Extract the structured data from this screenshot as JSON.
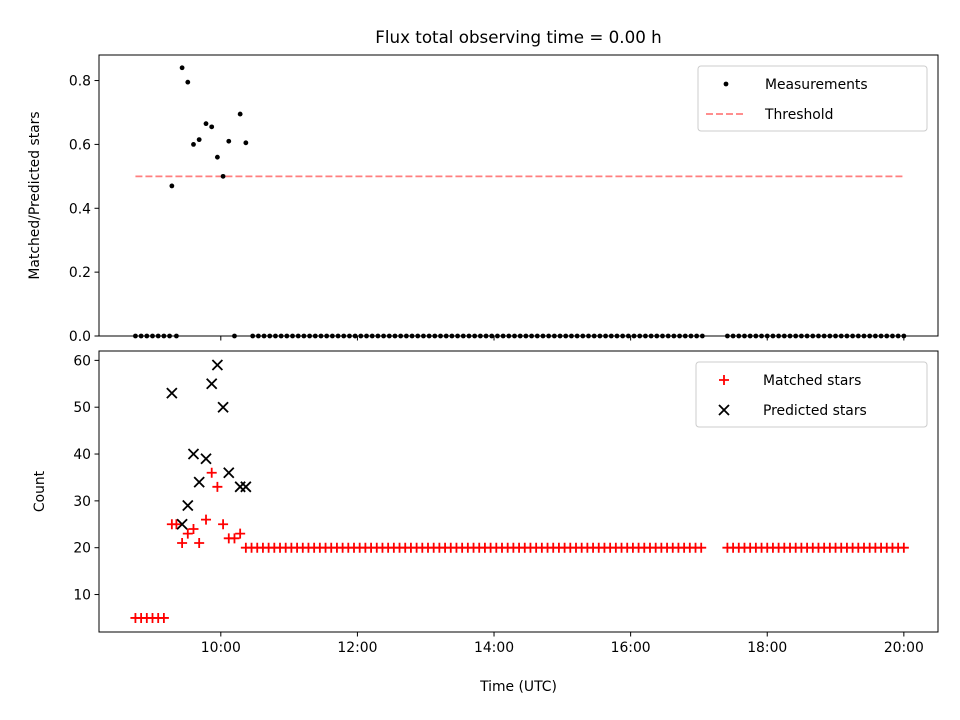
{
  "figure": {
    "title": "Flux total observing time = 0.00 h"
  },
  "colors": {
    "measurement": "#000000",
    "threshold": "#ff7f7f",
    "matched": "#ff0000",
    "predicted": "#000000",
    "axes": "#000000"
  },
  "chart_data": [
    {
      "type": "scatter",
      "panel": "top",
      "ylabel": "Matched/Predicted stars",
      "xlabel": "",
      "x_unit": "time (UTC, HH:MM)",
      "xlim": [
        "08:13",
        "20:30"
      ],
      "ylim": [
        0,
        0.88
      ],
      "yticks": [
        0.0,
        0.2,
        0.4,
        0.6,
        0.8
      ],
      "ytick_labels": [
        "0.0",
        "0.2",
        "0.4",
        "0.6",
        "0.8"
      ],
      "xticks": [
        "10:00",
        "12:00",
        "14:00",
        "16:00",
        "18:00",
        "20:00"
      ],
      "xtick_labels_shown": false,
      "legend": {
        "placement": "top-right",
        "entries": [
          "Measurements",
          "Threshold"
        ]
      },
      "series": [
        {
          "name": "Measurements",
          "kind": "points",
          "points": [
            [
              "09:17",
              0.47
            ],
            [
              "09:26",
              0.84
            ],
            [
              "09:31",
              0.795
            ],
            [
              "09:36",
              0.6
            ],
            [
              "09:41",
              0.615
            ],
            [
              "09:47",
              0.665
            ],
            [
              "09:52",
              0.655
            ],
            [
              "09:57",
              0.56
            ],
            [
              "10:02",
              0.5
            ],
            [
              "10:07",
              0.61
            ],
            [
              "10:17",
              0.695
            ],
            [
              "10:22",
              0.605
            ]
          ],
          "zero_runs": [
            {
              "from": "08:45",
              "to": "09:15",
              "every_min": 5
            },
            {
              "from": "09:21",
              "to": "09:21",
              "every_min": 5
            },
            {
              "from": "10:12",
              "to": "10:12",
              "every_min": 5
            },
            {
              "from": "10:28",
              "to": "17:05",
              "every_min": 5
            },
            {
              "from": "17:25",
              "to": "20:00",
              "every_min": 5
            }
          ]
        },
        {
          "name": "Threshold",
          "kind": "dashed-line",
          "y": 0.5,
          "x_from": "08:45",
          "x_to": "20:00"
        }
      ]
    },
    {
      "type": "scatter",
      "panel": "bottom",
      "ylabel": "Count",
      "xlabel": "Time (UTC)",
      "xlim": [
        "08:13",
        "20:30"
      ],
      "ylim": [
        2,
        62
      ],
      "yticks": [
        10,
        20,
        30,
        40,
        50,
        60
      ],
      "ytick_labels": [
        "10",
        "20",
        "30",
        "40",
        "50",
        "60"
      ],
      "xticks": [
        "10:00",
        "12:00",
        "14:00",
        "16:00",
        "18:00",
        "20:00"
      ],
      "xtick_labels": [
        "10:00",
        "12:00",
        "14:00",
        "16:00",
        "18:00",
        "20:00"
      ],
      "legend": {
        "placement": "top-right",
        "entries": [
          "Matched stars",
          "Predicted stars"
        ]
      },
      "series": [
        {
          "name": "Matched stars",
          "marker": "+",
          "points": [
            [
              "08:45",
              5
            ],
            [
              "08:50",
              5
            ],
            [
              "08:55",
              5
            ],
            [
              "09:00",
              5
            ],
            [
              "09:05",
              5
            ],
            [
              "09:10",
              5
            ],
            [
              "09:17",
              25
            ],
            [
              "09:21",
              25
            ],
            [
              "09:26",
              21
            ],
            [
              "09:31",
              23
            ],
            [
              "09:36",
              24
            ],
            [
              "09:41",
              21
            ],
            [
              "09:47",
              26
            ],
            [
              "09:52",
              36
            ],
            [
              "09:57",
              33
            ],
            [
              "10:02",
              25
            ],
            [
              "10:07",
              22
            ],
            [
              "10:12",
              22
            ],
            [
              "10:17",
              23
            ]
          ],
          "constant_runs": [
            {
              "value": 20,
              "from": "10:22",
              "to": "17:05",
              "every_min": 5
            },
            {
              "value": 20,
              "from": "17:25",
              "to": "20:00",
              "every_min": 5
            }
          ]
        },
        {
          "name": "Predicted stars",
          "marker": "x",
          "points": [
            [
              "09:17",
              53
            ],
            [
              "09:26",
              25
            ],
            [
              "09:31",
              29
            ],
            [
              "09:36",
              40
            ],
            [
              "09:41",
              34
            ],
            [
              "09:47",
              39
            ],
            [
              "09:52",
              55
            ],
            [
              "09:57",
              59
            ],
            [
              "10:02",
              50
            ],
            [
              "10:07",
              36
            ],
            [
              "10:17",
              33
            ],
            [
              "10:22",
              33
            ]
          ]
        }
      ]
    }
  ]
}
